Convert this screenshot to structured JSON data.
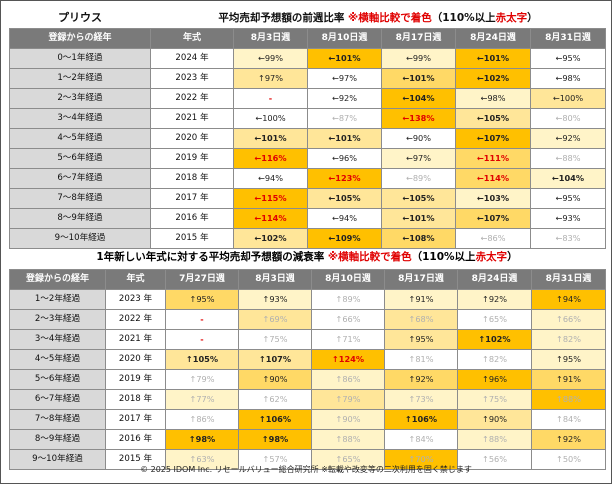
{
  "table1": {
    "brand": "プリウス",
    "title": "平均売却予想額の前週比率",
    "note_prefix": "※",
    "note_main": "横軸比較で着色",
    "note_suffix": "（110%以上",
    "note_red": "赤太字",
    "note_close": "）",
    "headers": [
      "登録からの経年",
      "年式",
      "8月3日週",
      "8月10日週",
      "8月17日週",
      "8月24日週",
      "8月31日週"
    ],
    "rows": [
      {
        "label": "0～1年経過",
        "year": "2024 年",
        "cells": [
          {
            "t": "←99%",
            "bg": "#fff4c8"
          },
          {
            "t": "←101%",
            "bg": "#ffc000",
            "b": 1
          },
          {
            "t": "←99%",
            "bg": "#fff4c8"
          },
          {
            "t": "←101%",
            "bg": "#ffc000",
            "b": 1
          },
          {
            "t": "←95%",
            "bg": "#ffffff"
          }
        ]
      },
      {
        "label": "1～2年経過",
        "year": "2023 年",
        "cells": [
          {
            "t": "↑97%",
            "bg": "#ffe699"
          },
          {
            "t": "←97%",
            "bg": "#ffffff"
          },
          {
            "t": "←101%",
            "bg": "#ffd966",
            "b": 1
          },
          {
            "t": "←102%",
            "bg": "#ffc000",
            "b": 1
          },
          {
            "t": "←98%",
            "bg": "#ffffff"
          }
        ]
      },
      {
        "label": "2～3年経過",
        "year": "2022 年",
        "cells": [
          {
            "t": "-",
            "bg": "#ffffff",
            "red": 1
          },
          {
            "t": "←92%",
            "bg": "#ffffff"
          },
          {
            "t": "←104%",
            "bg": "#ffc000",
            "b": 1
          },
          {
            "t": "←98%",
            "bg": "#fff4c8"
          },
          {
            "t": "←100%",
            "bg": "#ffe699"
          }
        ]
      },
      {
        "label": "3～4年経過",
        "year": "2021 年",
        "cells": [
          {
            "t": "←100%",
            "bg": "#ffffff"
          },
          {
            "t": "←87%",
            "bg": "#ffffff",
            "dim": 1
          },
          {
            "t": "←138%",
            "bg": "#ffc000",
            "red": 1
          },
          {
            "t": "←105%",
            "bg": "#ffe699",
            "b": 1
          },
          {
            "t": "←80%",
            "bg": "#ffffff",
            "dim": 1
          }
        ]
      },
      {
        "label": "4～5年経過",
        "year": "2020 年",
        "cells": [
          {
            "t": "←101%",
            "bg": "#ffe699",
            "b": 1
          },
          {
            "t": "←101%",
            "bg": "#ffe699",
            "b": 1
          },
          {
            "t": "←90%",
            "bg": "#ffffff"
          },
          {
            "t": "←107%",
            "bg": "#ffc000",
            "b": 1
          },
          {
            "t": "←92%",
            "bg": "#fff4c8"
          }
        ]
      },
      {
        "label": "5～6年経過",
        "year": "2019 年",
        "cells": [
          {
            "t": "←116%",
            "bg": "#ffc000",
            "red": 1
          },
          {
            "t": "←96%",
            "bg": "#ffffff"
          },
          {
            "t": "←97%",
            "bg": "#fff4c8"
          },
          {
            "t": "←111%",
            "bg": "#ffd966",
            "red": 1
          },
          {
            "t": "←88%",
            "bg": "#ffffff",
            "dim": 1
          }
        ]
      },
      {
        "label": "6～7年経過",
        "year": "2018 年",
        "cells": [
          {
            "t": "←94%",
            "bg": "#ffffff"
          },
          {
            "t": "←123%",
            "bg": "#ffc000",
            "red": 1
          },
          {
            "t": "←89%",
            "bg": "#ffffff",
            "dim": 1
          },
          {
            "t": "←114%",
            "bg": "#ffd966",
            "red": 1
          },
          {
            "t": "←104%",
            "bg": "#fff4c8",
            "b": 1
          }
        ]
      },
      {
        "label": "7～8年経過",
        "year": "2017 年",
        "cells": [
          {
            "t": "←115%",
            "bg": "#ffc000",
            "red": 1
          },
          {
            "t": "←105%",
            "bg": "#ffe699",
            "b": 1
          },
          {
            "t": "←105%",
            "bg": "#ffe699",
            "b": 1
          },
          {
            "t": "←103%",
            "bg": "#fff4c8",
            "b": 1
          },
          {
            "t": "←95%",
            "bg": "#ffffff"
          }
        ]
      },
      {
        "label": "8～9年経過",
        "year": "2016 年",
        "cells": [
          {
            "t": "←114%",
            "bg": "#ffc000",
            "red": 1
          },
          {
            "t": "←94%",
            "bg": "#ffffff"
          },
          {
            "t": "←101%",
            "bg": "#ffe699",
            "b": 1
          },
          {
            "t": "←107%",
            "bg": "#ffd966",
            "b": 1
          },
          {
            "t": "←93%",
            "bg": "#ffffff"
          }
        ]
      },
      {
        "label": "9～10年経過",
        "year": "2015 年",
        "cells": [
          {
            "t": "←102%",
            "bg": "#ffe699",
            "b": 1
          },
          {
            "t": "←109%",
            "bg": "#ffc000",
            "b": 1
          },
          {
            "t": "←108%",
            "bg": "#ffd966",
            "b": 1
          },
          {
            "t": "←86%",
            "bg": "#ffffff",
            "dim": 1
          },
          {
            "t": "←83%",
            "bg": "#ffffff",
            "dim": 1
          }
        ]
      }
    ]
  },
  "table2": {
    "title": "1年新しい年式に対する平均売却予想額の減衰率",
    "note_prefix": "※",
    "note_main": "横軸比較で着色",
    "note_suffix": "（110%以上",
    "note_red": "赤太字",
    "note_close": "）",
    "headers": [
      "登録からの経年",
      "年式",
      "7月27日週",
      "8月3日週",
      "8月10日週",
      "8月17日週",
      "8月24日週",
      "8月31日週"
    ],
    "rows": [
      {
        "label": "1～2年経過",
        "year": "2023 年",
        "cells": [
          {
            "t": "↑95%",
            "bg": "#ffd966"
          },
          {
            "t": "↑93%",
            "bg": "#fff4c8"
          },
          {
            "t": "↑89%",
            "bg": "#ffffff",
            "dim": 1
          },
          {
            "t": "↑91%",
            "bg": "#fff4c8"
          },
          {
            "t": "↑92%",
            "bg": "#fff4c8"
          },
          {
            "t": "↑94%",
            "bg": "#ffc000"
          }
        ]
      },
      {
        "label": "2～3年経過",
        "year": "2022 年",
        "cells": [
          {
            "t": "-",
            "bg": "#ffffff",
            "red": 1
          },
          {
            "t": "↑69%",
            "bg": "#ffe699",
            "dim": 1
          },
          {
            "t": "↑66%",
            "bg": "#ffffff",
            "dim": 1
          },
          {
            "t": "↑68%",
            "bg": "#ffe699",
            "dim": 1
          },
          {
            "t": "↑65%",
            "bg": "#ffffff",
            "dim": 1
          },
          {
            "t": "↑66%",
            "bg": "#fff4c8",
            "dim": 1
          }
        ]
      },
      {
        "label": "3～4年経過",
        "year": "2021 年",
        "cells": [
          {
            "t": "-",
            "bg": "#ffffff",
            "red": 1
          },
          {
            "t": "↑75%",
            "bg": "#ffffff",
            "dim": 1
          },
          {
            "t": "↑71%",
            "bg": "#ffffff",
            "dim": 1
          },
          {
            "t": "↑95%",
            "bg": "#ffe699"
          },
          {
            "t": "↑102%",
            "bg": "#ffc000",
            "b": 1
          },
          {
            "t": "↑82%",
            "bg": "#fff4c8",
            "dim": 1
          }
        ]
      },
      {
        "label": "4～5年経過",
        "year": "2020 年",
        "cells": [
          {
            "t": "↑105%",
            "bg": "#ffe699",
            "b": 1
          },
          {
            "t": "↑107%",
            "bg": "#ffe699",
            "b": 1
          },
          {
            "t": "↑124%",
            "bg": "#ffc000",
            "red": 1
          },
          {
            "t": "↑81%",
            "bg": "#ffffff",
            "dim": 1
          },
          {
            "t": "↑82%",
            "bg": "#ffffff",
            "dim": 1
          },
          {
            "t": "↑95%",
            "bg": "#fff4c8"
          }
        ]
      },
      {
        "label": "5～6年経過",
        "year": "2019 年",
        "cells": [
          {
            "t": "↑79%",
            "bg": "#ffffff",
            "dim": 1
          },
          {
            "t": "↑90%",
            "bg": "#ffd966"
          },
          {
            "t": "↑86%",
            "bg": "#fff4c8",
            "dim": 1
          },
          {
            "t": "↑92%",
            "bg": "#ffd966"
          },
          {
            "t": "↑96%",
            "bg": "#ffc000"
          },
          {
            "t": "↑91%",
            "bg": "#ffd966"
          }
        ]
      },
      {
        "label": "6～7年経過",
        "year": "2018 年",
        "cells": [
          {
            "t": "↑77%",
            "bg": "#fff4c8",
            "dim": 1
          },
          {
            "t": "↑62%",
            "bg": "#ffffff",
            "dim": 1
          },
          {
            "t": "↑79%",
            "bg": "#ffe699",
            "dim": 1
          },
          {
            "t": "↑73%",
            "bg": "#fff4c8",
            "dim": 1
          },
          {
            "t": "↑75%",
            "bg": "#fff4c8",
            "dim": 1
          },
          {
            "t": "↑88%",
            "bg": "#ffc000",
            "dim": 1
          }
        ]
      },
      {
        "label": "7～8年経過",
        "year": "2017 年",
        "cells": [
          {
            "t": "↑86%",
            "bg": "#ffffff",
            "dim": 1
          },
          {
            "t": "↑106%",
            "bg": "#ffc000",
            "b": 1
          },
          {
            "t": "↑90%",
            "bg": "#fff4c8",
            "dim": 1
          },
          {
            "t": "↑106%",
            "bg": "#ffc000",
            "b": 1
          },
          {
            "t": "↑90%",
            "bg": "#ffe699"
          },
          {
            "t": "↑84%",
            "bg": "#ffffff",
            "dim": 1
          }
        ]
      },
      {
        "label": "8～9年経過",
        "year": "2016 年",
        "cells": [
          {
            "t": "↑98%",
            "bg": "#ffc000",
            "b": 1
          },
          {
            "t": "↑98%",
            "bg": "#ffc000",
            "b": 1
          },
          {
            "t": "↑88%",
            "bg": "#fff4c8",
            "dim": 1
          },
          {
            "t": "↑84%",
            "bg": "#ffffff",
            "dim": 1
          },
          {
            "t": "↑88%",
            "bg": "#fff4c8",
            "dim": 1
          },
          {
            "t": "↑92%",
            "bg": "#ffd966"
          }
        ]
      },
      {
        "label": "9～10年経過",
        "year": "2015 年",
        "cells": [
          {
            "t": "↑63%",
            "bg": "#fff4c8",
            "dim": 1
          },
          {
            "t": "↑57%",
            "bg": "#ffffff",
            "dim": 1
          },
          {
            "t": "↑65%",
            "bg": "#fff4c8",
            "dim": 1
          },
          {
            "t": "↑70%",
            "bg": "#ffc000",
            "dim": 1
          },
          {
            "t": "↑56%",
            "bg": "#ffffff",
            "dim": 1
          },
          {
            "t": "↑50%",
            "bg": "#ffffff",
            "dim": 1
          }
        ]
      }
    ]
  },
  "footer": "© 2025 IDOM Inc. リセールバリュー総合研究所 ※転載や改変等の二次利用を固く禁じます"
}
